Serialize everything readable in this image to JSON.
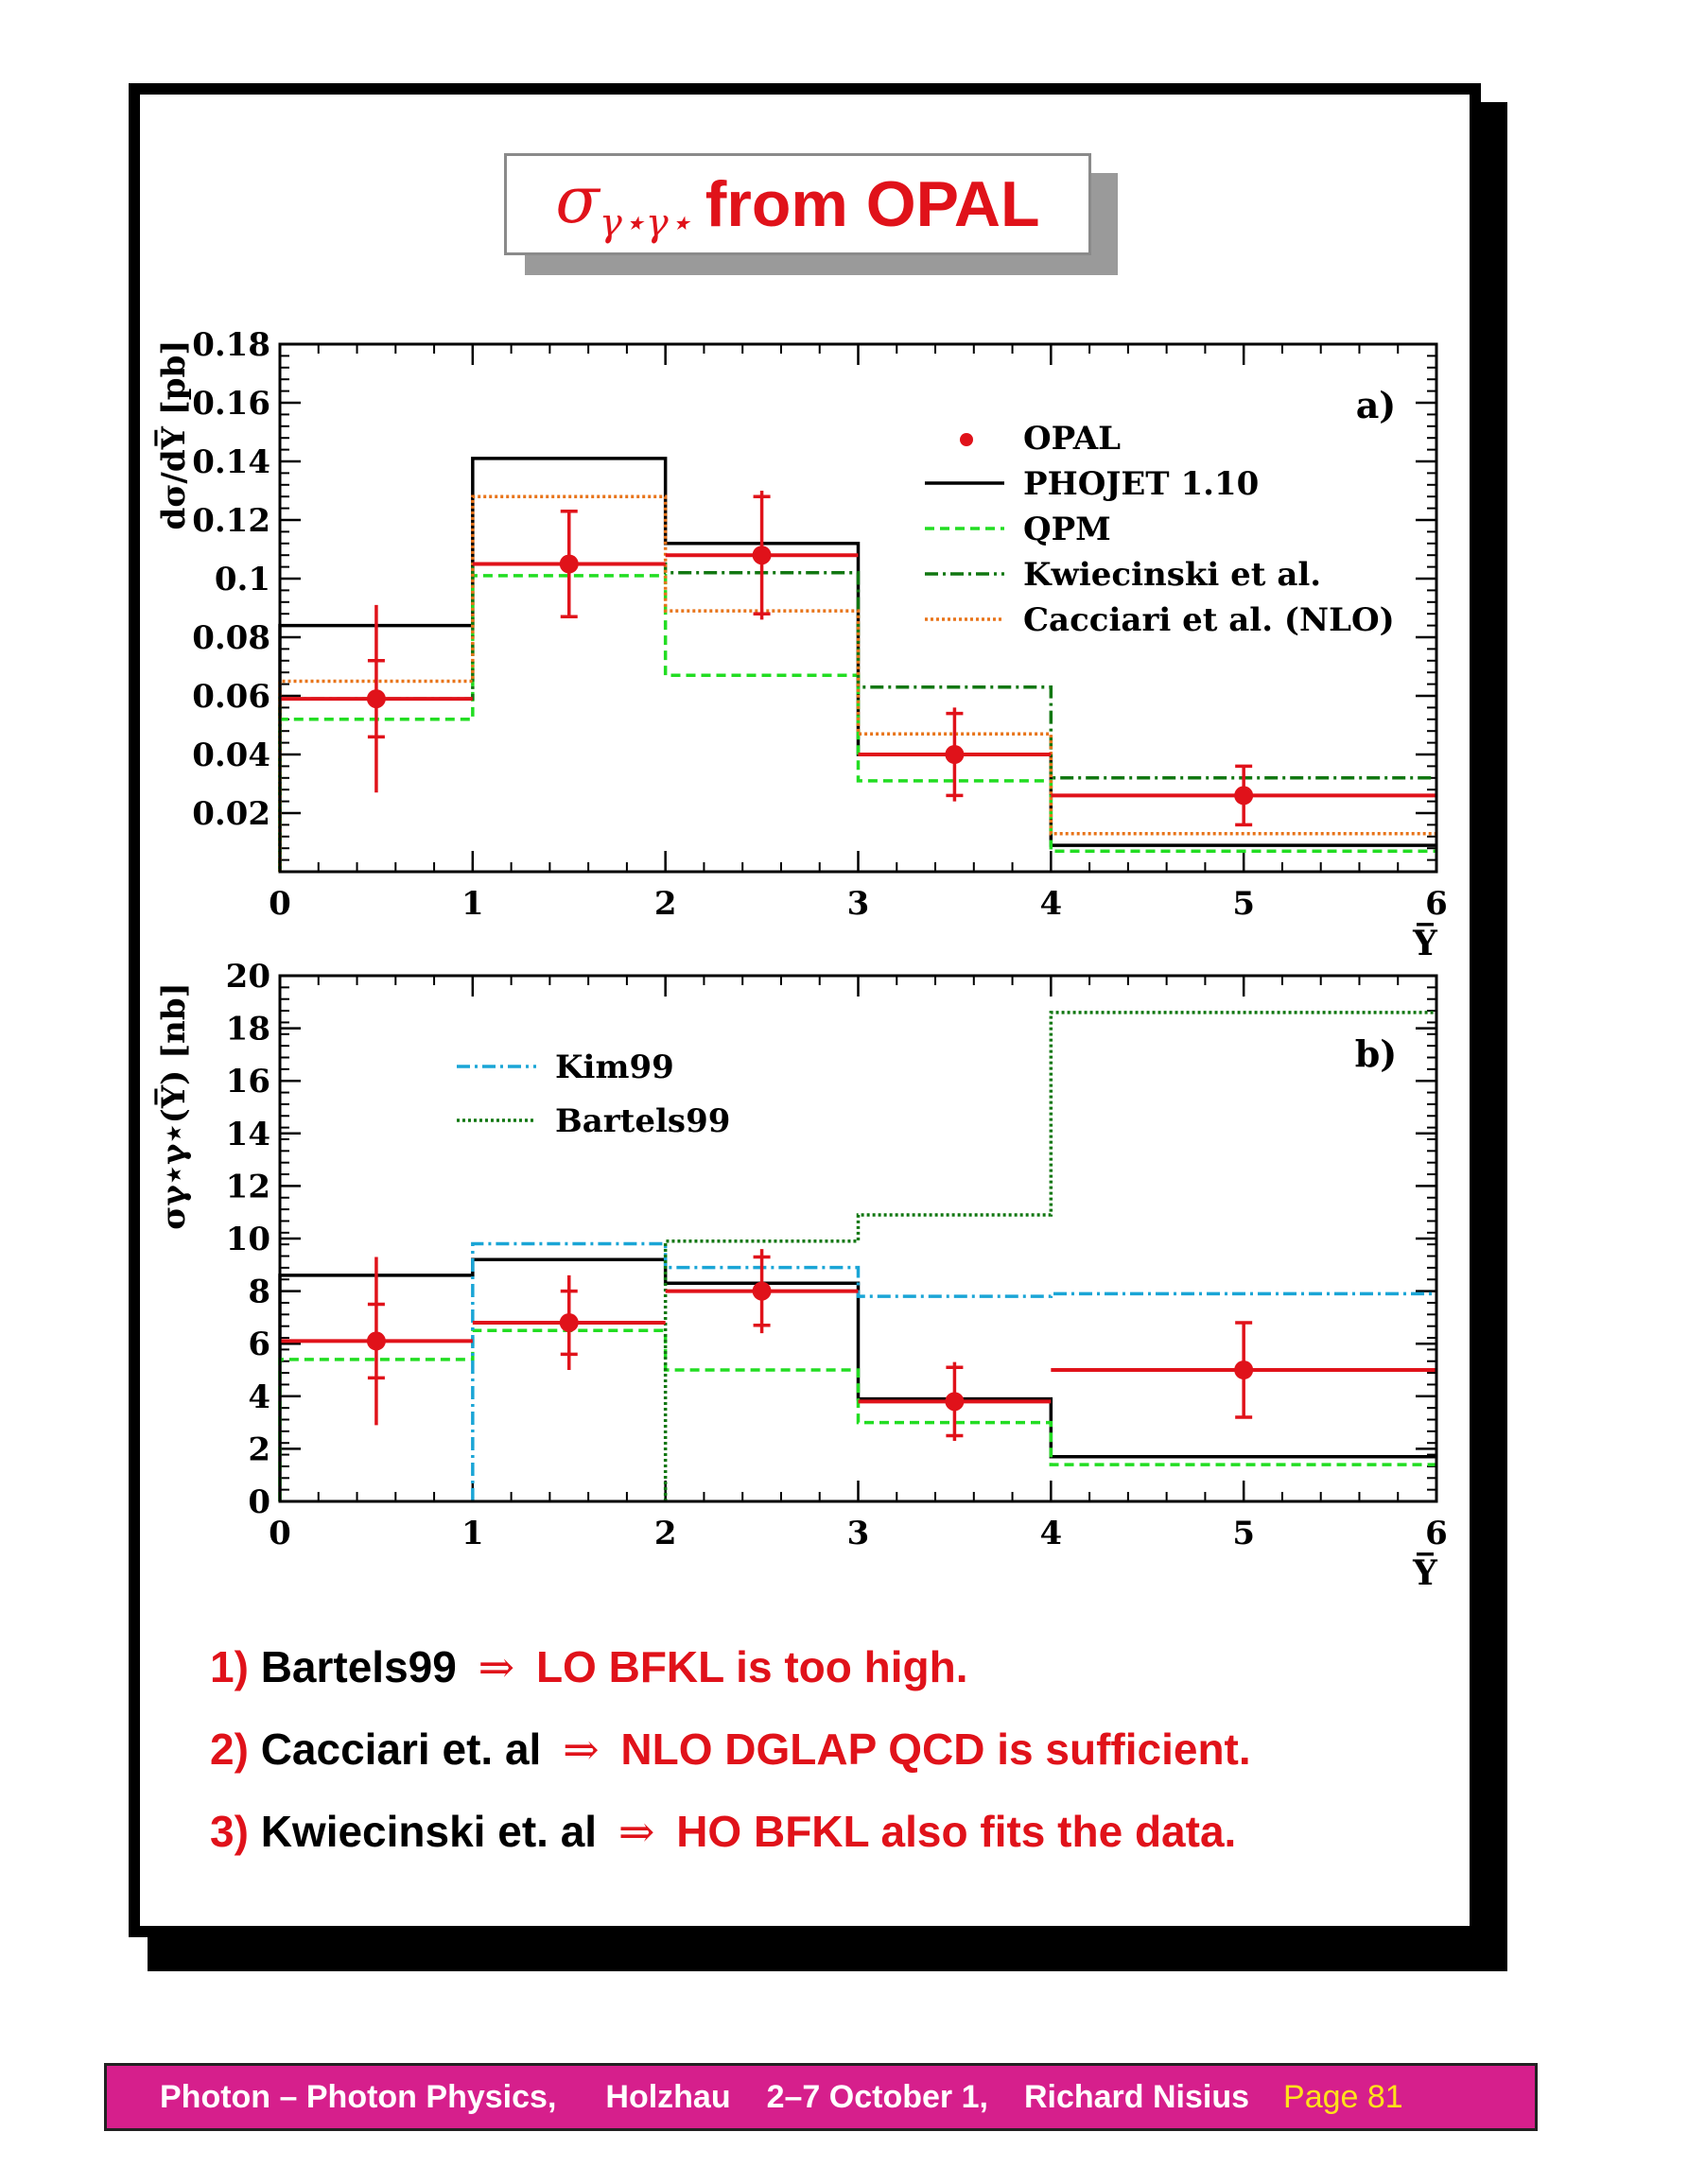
{
  "title": {
    "symbol": "σ",
    "subscript": "γ⋆γ⋆",
    "text": "from OPAL"
  },
  "colors": {
    "accent_red": "#e0121a",
    "footer_bg": "#d61f8c",
    "footer_page": "#ffe11a"
  },
  "chart_data": [
    {
      "type": "line",
      "panel_label": "a)",
      "xlabel": "Y̅",
      "ylabel": "dσ/dY̅ [pb]",
      "xlim": [
        0,
        6
      ],
      "ylim": [
        0,
        0.18
      ],
      "x_ticks": [
        0,
        1,
        2,
        3,
        4,
        5,
        6
      ],
      "y_ticks": [
        0.02,
        0.04,
        0.06,
        0.08,
        0.1,
        0.12,
        0.14,
        0.16,
        0.18
      ],
      "y_tick_labels": [
        "0.02",
        "0.04",
        "0.06",
        "0.08",
        "0.1",
        "0.12",
        "0.14",
        "0.16",
        "0.18"
      ],
      "x_tick_labels": [
        "0",
        "1",
        "2",
        "3",
        "4",
        "5",
        "6"
      ],
      "bin_edges": [
        0,
        1,
        2,
        3,
        4,
        5,
        6
      ],
      "legend_position": "top-right",
      "series": [
        {
          "name": "OPAL",
          "kind": "points",
          "color": "#e0121a",
          "x": [
            0.5,
            1.5,
            2.5,
            3.5,
            5.0
          ],
          "y": [
            0.059,
            0.105,
            0.108,
            0.04,
            0.026
          ],
          "xerr": [
            [
              0,
              1
            ],
            [
              1,
              2
            ],
            [
              2,
              3
            ],
            [
              3,
              4
            ],
            [
              4,
              6
            ]
          ],
          "yerr_stat": [
            0.013,
            0.018,
            0.02,
            0.014,
            0.01
          ],
          "yerr_total": [
            0.032,
            0.018,
            0.022,
            0.016,
            0.01
          ]
        },
        {
          "name": "PHOJET 1.10",
          "kind": "hist",
          "color": "#000000",
          "dash": "",
          "values": [
            0.084,
            0.141,
            0.112,
            0.04,
            0.009,
            0.009
          ]
        },
        {
          "name": "QPM",
          "kind": "hist",
          "color": "#22dd22",
          "dash": "10,6",
          "values": [
            0.052,
            0.101,
            0.067,
            0.031,
            0.007,
            0.007
          ]
        },
        {
          "name": "Kwiecinski et al.",
          "kind": "hist",
          "color": "#117711",
          "dash": "14,5,3,5",
          "values": [
            0.059,
            0.105,
            0.102,
            0.063,
            0.032,
            0.032
          ]
        },
        {
          "name": "Cacciari et al. (NLO)",
          "kind": "hist",
          "color": "#e8741a",
          "dash": "3,3",
          "values": [
            0.065,
            0.128,
            0.089,
            0.047,
            0.013,
            0.013
          ]
        }
      ]
    },
    {
      "type": "line",
      "panel_label": "b)",
      "xlabel": "Y̅",
      "ylabel": "σγ⋆γ⋆(Y̅) [nb]",
      "xlim": [
        0,
        6
      ],
      "ylim": [
        0,
        20
      ],
      "x_ticks": [
        0,
        1,
        2,
        3,
        4,
        5,
        6
      ],
      "y_ticks": [
        0,
        2,
        4,
        6,
        8,
        10,
        12,
        14,
        16,
        18,
        20
      ],
      "y_tick_labels": [
        "0",
        "2",
        "4",
        "6",
        "8",
        "10",
        "12",
        "14",
        "16",
        "18",
        "20"
      ],
      "x_tick_labels": [
        "0",
        "1",
        "2",
        "3",
        "4",
        "5",
        "6"
      ],
      "bin_edges": [
        0,
        1,
        2,
        3,
        4,
        5,
        6
      ],
      "legend_position": "top-left",
      "series": [
        {
          "name": "OPAL",
          "kind": "points",
          "color": "#e0121a",
          "in_legend": false,
          "x": [
            0.5,
            1.5,
            2.5,
            3.5,
            5.0
          ],
          "y": [
            6.1,
            6.8,
            8.0,
            3.8,
            5.0
          ],
          "xerr": [
            [
              0,
              1
            ],
            [
              1,
              2
            ],
            [
              2,
              3
            ],
            [
              3,
              4
            ],
            [
              4,
              6
            ]
          ],
          "yerr_stat": [
            1.4,
            1.2,
            1.3,
            1.3,
            1.8
          ],
          "yerr_total": [
            3.2,
            1.8,
            1.6,
            1.5,
            1.8
          ]
        },
        {
          "name": "PHOJET 1.10",
          "kind": "hist",
          "color": "#000000",
          "dash": "",
          "in_legend": false,
          "values": [
            8.6,
            9.2,
            8.3,
            3.9,
            1.7,
            1.7
          ]
        },
        {
          "name": "QPM",
          "kind": "hist",
          "color": "#22dd22",
          "dash": "10,6",
          "in_legend": false,
          "values": [
            5.4,
            6.5,
            5.0,
            3.0,
            1.4,
            1.4
          ]
        },
        {
          "name": "Kim99",
          "kind": "hist",
          "color": "#1aa5d6",
          "dash": "14,5,3,5",
          "start": 1,
          "values": [
            null,
            9.8,
            8.9,
            7.8,
            7.9,
            7.9
          ]
        },
        {
          "name": "Bartels99",
          "kind": "hist",
          "color": "#117711",
          "dash": "3,3",
          "start": 2,
          "values": [
            null,
            null,
            9.9,
            10.9,
            18.6,
            18.6
          ]
        }
      ]
    }
  ],
  "conclusions": [
    {
      "num": "1)",
      "subject": "Bartels99",
      "arrow": "⇒",
      "claim": "LO BFKL is too high."
    },
    {
      "num": "2)",
      "subject": "Cacciari et. al",
      "arrow": "⇒",
      "claim": "NLO DGLAP QCD is sufficient."
    },
    {
      "num": "3)",
      "subject": "Kwiecinski et. al",
      "arrow": "⇒",
      "claim": "HO BFKL also fits the data."
    }
  ],
  "footer": {
    "topic": "Photon – Photon Physics",
    "place": "Holzhau",
    "dates": "2–7 October 1,",
    "author": "Richard Nisius",
    "page": "Page 81"
  }
}
